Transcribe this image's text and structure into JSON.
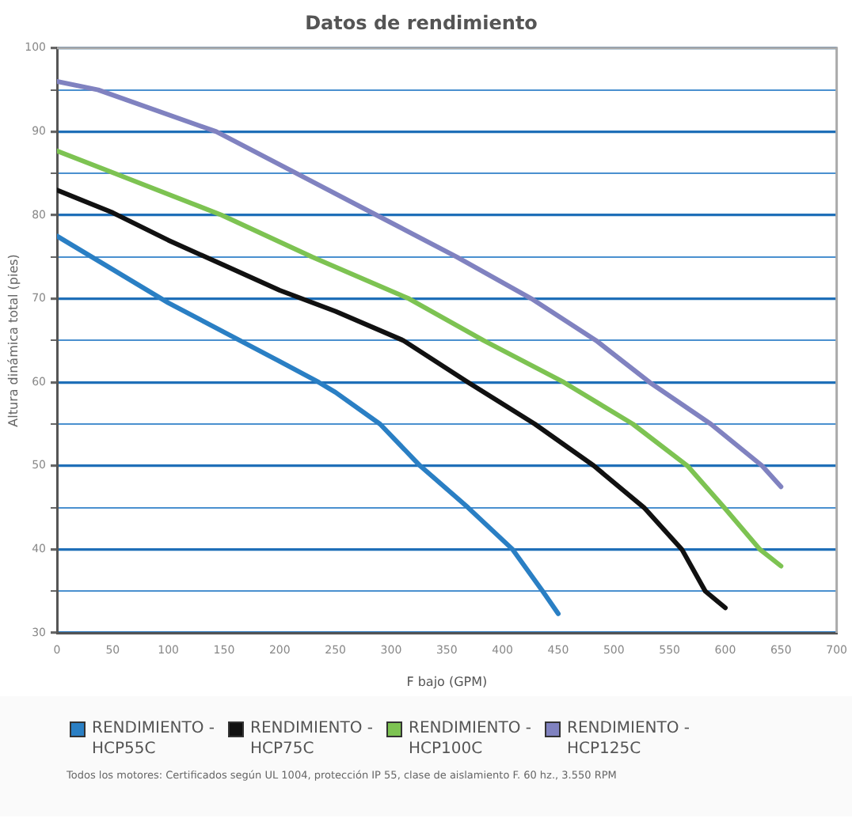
{
  "chart_data": {
    "type": "line",
    "title": "Datos de rendimiento",
    "xlabel": "F bajo (GPM)",
    "ylabel": "Altura dinámica total (pies)",
    "xlim": [
      0,
      700
    ],
    "xticks": [
      0,
      50,
      100,
      150,
      200,
      250,
      300,
      350,
      400,
      450,
      500,
      550,
      600,
      650,
      700
    ],
    "ylim": [
      30,
      100
    ],
    "yticks": [
      30,
      {
        "value": 35,
        "label": null
      },
      40,
      {
        "value": 45,
        "label": null
      },
      50,
      {
        "value": 55,
        "label": null
      },
      60,
      {
        "value": 65,
        "label": null
      },
      70,
      {
        "value": 75,
        "label": null
      },
      80,
      {
        "value": 85,
        "label": null
      },
      90,
      {
        "value": 95,
        "label": null
      },
      100
    ],
    "grid": "y",
    "legend": "bottom",
    "marker": "none",
    "line_style": "solid",
    "series": [
      {
        "name": "RENDIMIENTO - HCP55C",
        "color": "#2a7fc4",
        "x": [
          0,
          50,
          100,
          150,
          200,
          235,
          250,
          290,
          326,
          369,
          409,
          436,
          450
        ],
        "values": [
          77.5,
          73.5,
          69.5,
          66,
          62.5,
          60,
          58.8,
          55,
          50,
          45,
          40,
          35,
          32.3
        ]
      },
      {
        "name": "RENDIMIENTO - HCP75C",
        "color": "#111111",
        "x": [
          0,
          50,
          100,
          150,
          200,
          250,
          311,
          369,
          429,
          482,
          527,
          561,
          582,
          600
        ],
        "values": [
          83,
          80.3,
          77,
          74,
          71,
          68.5,
          65,
          60,
          55,
          50,
          45,
          40,
          35,
          33
        ]
      },
      {
        "name": "RENDIMIENTO - HCP100C",
        "color": "#7dc352",
        "x": [
          0,
          52,
          148,
          229,
          316,
          383,
          455,
          517,
          566,
          599,
          631,
          650
        ],
        "values": [
          87.7,
          85,
          80,
          75,
          70,
          65,
          60,
          55,
          50,
          45,
          40,
          38
        ]
      },
      {
        "name": "RENDIMIENTO - HCP125C",
        "color": "#8082c0",
        "x": [
          0,
          37,
          143,
          215,
          287,
          359,
          426,
          484,
          532,
          587,
          633,
          650
        ],
        "values": [
          96,
          95,
          90,
          85,
          80,
          75,
          70,
          65,
          60,
          55,
          50,
          47.5
        ]
      }
    ],
    "annotations": [
      "Todos los motores: Certificados según UL 1004, protección IP 55, clase de aislamiento F. 60 hz., 3.550 RPM"
    ]
  }
}
